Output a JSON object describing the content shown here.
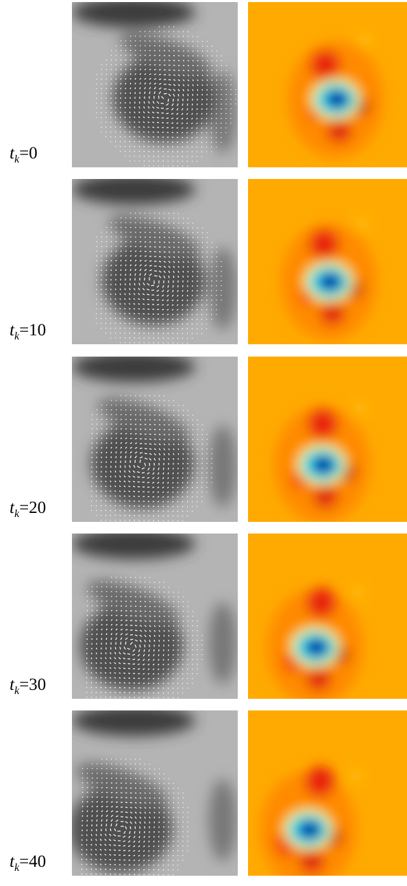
{
  "rows": [
    {
      "symbol": "t",
      "subscript": "k",
      "value": "=0"
    },
    {
      "symbol": "t",
      "subscript": "k",
      "value": "=10"
    },
    {
      "symbol": "t",
      "subscript": "k",
      "value": "=20"
    },
    {
      "symbol": "t",
      "subscript": "k",
      "value": "=30"
    },
    {
      "symbol": "t",
      "subscript": "k",
      "value": "=40"
    }
  ]
}
